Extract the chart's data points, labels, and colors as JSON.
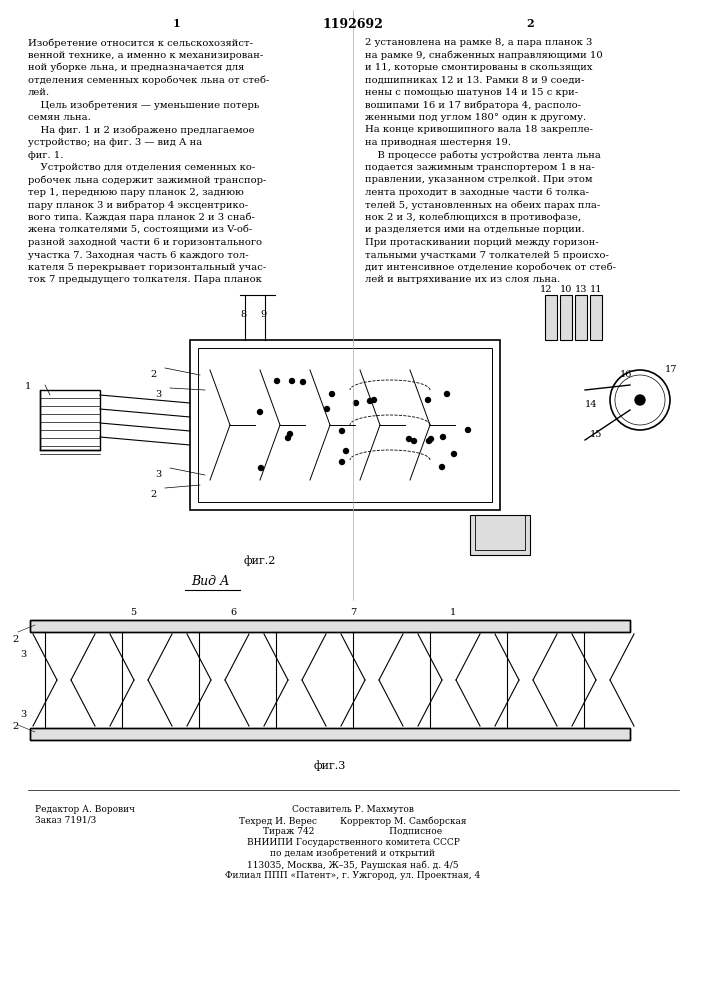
{
  "page_width": 7.07,
  "page_height": 10.0,
  "dpi": 100,
  "bg_color": "#ffffff",
  "text_color": "#000000",
  "line_color": "#000000",
  "patent_number": "1192692",
  "col1_header": "1",
  "col2_header": "2",
  "col1_text": "Изобретение относится к сельскохозяйст-\nвенной технике, а именно к механизирован-\nной уборке льна, и предназначается для\nотделения семенных коробочек льна от стеб-\nлей.\n    Цель изобретения — уменьшение потерь\nсемян льна.\n    На фиг. 1 и 2 изображено предлагаемое\nустройство; на фиг. 3 — вид А на\nфиг. 1.\n    Устройство для отделения семенных ко-\nробочек льна содержит зажимной транспор-\nтер 1, переднюю пару планок 2, заднюю\nпару планок 3 и вибратор 4 эксцентрико-\nвого типа. Каждая пара планок 2 и 3 снаб-\nжена толкателями 5, состоящими из V-об-\nразной заходной части 6 и горизонтального\nучастка 7. Заходная часть 6 каждого тол-\nкателя 5 перекрывает горизонтальный учас-\nток 7 предыдущего толкателя. Пара планок",
  "col2_text": "2 установлена на рамке 8, а пара планок 3\nна рамке 9, снабженных направляющими 10\nи 11, которые смонтированы в скользящих\nподшипниках 12 и 13. Рамки 8 и 9 соеди-\nнены с помощью шатунов 14 и 15 с кри-\nвошипами 16 и 17 вибратора 4, располо-\nженными под углом 180° один к другому.\nНа конце кривошипного вала 18 закрепле-\nна приводная шестерня 19.\n    В процессе работы устройства лента льна\nподается зажимным транспортером 1 в на-\nправлении, указанном стрелкой. При этом\nлента проходит в заходные части 6 толка-\nтелей 5, установленных на обеих парах пла-\nнок 2 и 3, колеблющихся в противофазе,\nи разделяется ими на отдельные порции.\nПри протаскивании порций между горизон-\nтальными участками 7 толкателей 5 происхо-\nдит интенсивное отделение коробочек от стеб-\nлей и вытряхивание их из слоя льна.",
  "fig2_caption": "фиг.2",
  "fig3_caption": "фиг.3",
  "vid_a_label": "Вид А",
  "footer_left": "Редактор А. Ворович\nЗаказ 7191/3",
  "footer_center": "Составитель Р. Махмутов\nТехред И. Верес        Корректор М. Самборская\nТираж 742                          Подписное\nВНИИПИ Государственного комитета СССР\nпо делам изобретений и открытий\n113035, Москва, Ж–35, Раушская наб. д. 4/5\nФилиал ППП «Патент», г. Ужгород, ул. Проектная, 4"
}
